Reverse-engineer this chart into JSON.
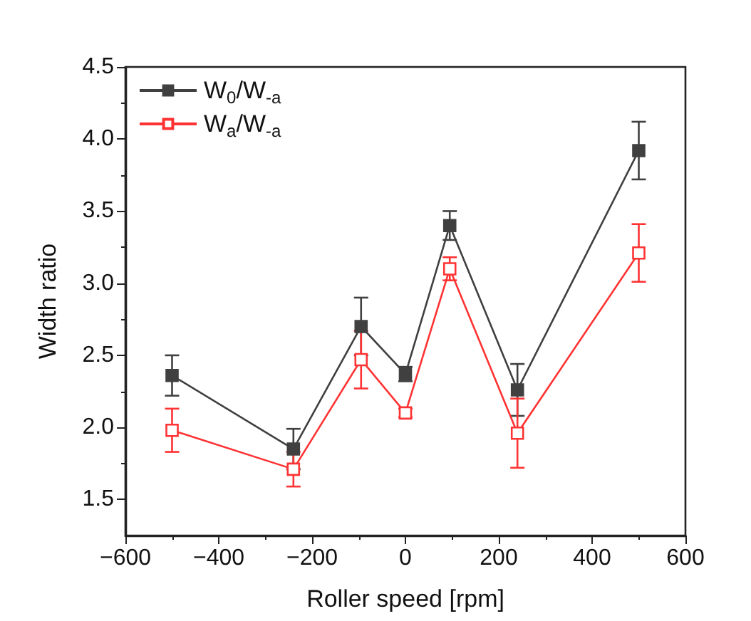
{
  "chart_data": {
    "type": "line",
    "xlabel": "Roller speed [rpm]",
    "ylabel": "Width ratio",
    "x": [
      -500,
      -240,
      -95,
      0,
      95,
      240,
      500
    ],
    "series": [
      {
        "name": "W$_{0}$/W$_{-a}$",
        "color": "#404040",
        "values": [
          2.36,
          1.85,
          2.7,
          2.37,
          3.4,
          2.26,
          3.92
        ],
        "errors": [
          0.14,
          0.14,
          0.2,
          0.05,
          0.1,
          0.18,
          0.2
        ]
      },
      {
        "name": "W$_{a}$/W$_{-a}$",
        "color": "#ff3333",
        "values": [
          1.98,
          1.71,
          2.47,
          2.1,
          3.1,
          1.96,
          3.21
        ],
        "errors": [
          0.15,
          0.12,
          0.2,
          0.03,
          0.08,
          0.24,
          0.2
        ]
      }
    ],
    "xlim": [
      -600,
      600
    ],
    "xticks": [
      -600,
      -400,
      -200,
      0,
      200,
      400,
      600
    ],
    "ylim": [
      1.25,
      4.5
    ],
    "yticks": [
      1.5,
      {
        "value": 2,
        "label": "2.0"
      },
      2.5,
      {
        "value": 3,
        "label": "3.0"
      },
      3.5,
      {
        "value": 4,
        "label": "4.0"
      },
      4.5
    ],
    "legend": "top left",
    "marker": "square",
    "grid": false
  }
}
